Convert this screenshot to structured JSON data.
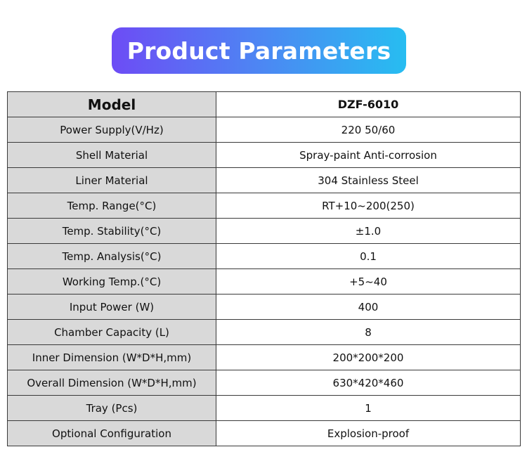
{
  "title": "Product Parameters",
  "header": {
    "label": "Model",
    "value": "DZF-6010"
  },
  "rows": [
    {
      "label": "Power Supply(V/Hz)",
      "value": "220  50/60"
    },
    {
      "label": "Shell Material",
      "value": "Spray-paint Anti-corrosion"
    },
    {
      "label": "Liner Material",
      "value": "304 Stainless Steel"
    },
    {
      "label": "Temp. Range(°C)",
      "value": "RT+10~200(250)"
    },
    {
      "label": "Temp. Stability(°C)",
      "value": "±1.0"
    },
    {
      "label": "Temp. Analysis(°C)",
      "value": "0.1"
    },
    {
      "label": "Working Temp.(°C)",
      "value": "+5~40"
    },
    {
      "label": "Input Power (W)",
      "value": "400"
    },
    {
      "label": "Chamber Capacity (L)",
      "value": "8"
    },
    {
      "label": "Inner Dimension (W*D*H,mm)",
      "value": "200*200*200"
    },
    {
      "label": "Overall Dimension (W*D*H,mm)",
      "value": "630*420*460"
    },
    {
      "label": "Tray (Pcs)",
      "value": "1"
    },
    {
      "label": "Optional Configuration",
      "value": "Explosion-proof"
    }
  ],
  "colors": {
    "title_gradient_start": "#6d4cf5",
    "title_gradient_end": "#27bdf1",
    "label_cell_bg": "#d9d9d9",
    "border": "#3a3a3a"
  }
}
